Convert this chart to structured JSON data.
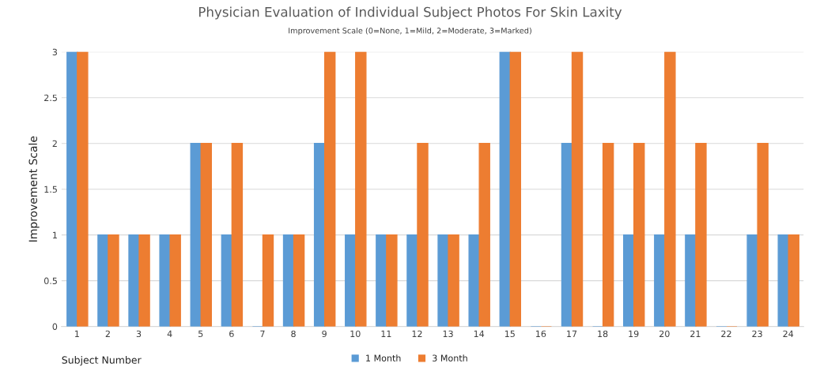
{
  "chart_data": {
    "type": "bar",
    "title": "Physician Evaluation of Individual Subject Photos For Skin Laxity",
    "subtitle": "Improvement Scale (0=None, 1=Mild, 2=Moderate, 3=Marked)",
    "xlabel": "Subject Number",
    "ylabel": "Improvement Scale",
    "categories": [
      "1",
      "2",
      "3",
      "4",
      "5",
      "6",
      "7",
      "8",
      "9",
      "10",
      "11",
      "12",
      "13",
      "14",
      "15",
      "16",
      "17",
      "18",
      "19",
      "20",
      "21",
      "22",
      "23",
      "24"
    ],
    "series": [
      {
        "name": "1 Month",
        "color": "#5b9bd5",
        "values": [
          3,
          1,
          1,
          1,
          2,
          1,
          0,
          1,
          2,
          1,
          1,
          1,
          1,
          1,
          3,
          0,
          2,
          0,
          1,
          1,
          1,
          0,
          1,
          1
        ]
      },
      {
        "name": "3 Month",
        "color": "#ed7d31",
        "values": [
          3,
          1,
          1,
          1,
          2,
          2,
          1,
          1,
          3,
          3,
          1,
          2,
          1,
          2,
          3,
          0,
          3,
          2,
          2,
          3,
          2,
          0,
          2,
          1
        ]
      }
    ],
    "ylim": [
      0,
      3
    ],
    "yticks": [
      0,
      0.5,
      1,
      1.5,
      2,
      2.5,
      3
    ],
    "grid": "y",
    "legend": "bottom"
  }
}
